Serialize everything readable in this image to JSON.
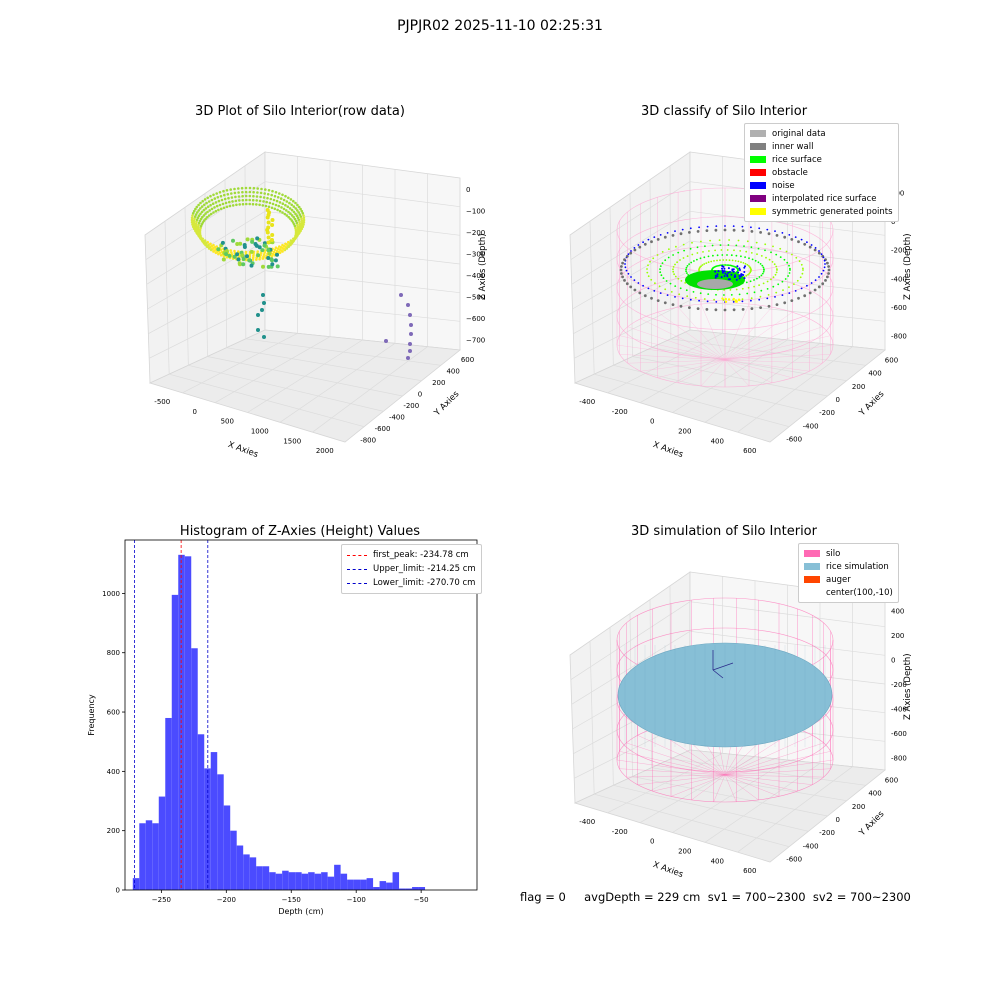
{
  "suptitle": "PJPJR02 2025-11-10 02:25:31",
  "footer": "flag = 0     avgDepth = 229 cm  sv1 = 700~2300  sv2 = 700~2300",
  "colors": {
    "hist_bar": "#4b4bff",
    "first_peak_line": "#ff0000",
    "limit_line": "#0000cc",
    "grid_pane": "#f2f2f2",
    "silo_mesh": "#ff69b4",
    "rice_sim": "#87bfd6",
    "auger": "#ff4500"
  },
  "chart_data": [
    {
      "id": "raw",
      "type": "scatter",
      "title": "3D Plot of Silo Interior(row data)",
      "xlabel": "X Axies",
      "ylabel": "Y Axies",
      "zlabel": "Z Axies (Depth)",
      "x_ticks": [
        "-500",
        "0",
        "500",
        "1000",
        "1500",
        "2000"
      ],
      "y_ticks": [
        "-800",
        "-600",
        "-400",
        "-200",
        "0",
        "200",
        "400",
        "600"
      ],
      "z_ticks": [
        "0",
        "−100",
        "−200",
        "−300",
        "−400",
        "−500",
        "−600",
        "−700"
      ],
      "colormap": "viridis"
    },
    {
      "id": "classify",
      "type": "scatter",
      "title": "3D classify of Silo Interior",
      "xlabel": "X Axies",
      "ylabel": "Y Axies",
      "zlabel": "Z Axies (Depth)",
      "x_ticks": [
        "-400",
        "-200",
        "0",
        "200",
        "400",
        "600"
      ],
      "y_ticks": [
        "-600",
        "-400",
        "-200",
        "0",
        "200",
        "400",
        "600"
      ],
      "z_ticks": [
        "200",
        "0",
        "-200",
        "-400",
        "-600",
        "-800"
      ],
      "legend": [
        {
          "label": "original data",
          "color": "#b0b0b0"
        },
        {
          "label": "inner wall",
          "color": "#808080"
        },
        {
          "label": "rice surface",
          "color": "#00ff00"
        },
        {
          "label": "obstacle",
          "color": "#ff0000"
        },
        {
          "label": "noise",
          "color": "#0000ff"
        },
        {
          "label": "interpolated rice surface",
          "color": "#800080"
        },
        {
          "label": "symmetric generated points",
          "color": "#ffff00"
        }
      ]
    },
    {
      "id": "hist",
      "type": "bar",
      "title": "Histogram of Z-Axies (Height) Values",
      "xlabel": "Depth (cm)",
      "ylabel": "Frequency",
      "xlim": [
        -278,
        -7
      ],
      "ylim": [
        0,
        1180
      ],
      "x_ticks": [
        -250,
        -200,
        -150,
        -100,
        -50
      ],
      "x_tick_labels": [
        "−250",
        "−200",
        "−150",
        "−100",
        "−50"
      ],
      "y_ticks": [
        0,
        200,
        400,
        600,
        800,
        1000
      ],
      "bin_start": -272,
      "bin_width": 5,
      "values": [
        40,
        225,
        235,
        225,
        315,
        580,
        995,
        1130,
        1125,
        815,
        525,
        410,
        465,
        390,
        285,
        200,
        150,
        120,
        110,
        80,
        80,
        60,
        55,
        65,
        60,
        60,
        55,
        60,
        55,
        60,
        45,
        85,
        55,
        35,
        35,
        35,
        40,
        10,
        30,
        25,
        60,
        5,
        5,
        10,
        10
      ],
      "vlines": [
        {
          "label": "first_peak: -234.78 cm",
          "x": -234.78,
          "color": "#ff0000"
        },
        {
          "label": "Upper_limit: -214.25 cm",
          "x": -214.25,
          "color": "#0000cc"
        },
        {
          "label": "Lower_limit: -270.70 cm",
          "x": -270.7,
          "color": "#0000cc"
        }
      ]
    },
    {
      "id": "sim",
      "type": "scatter",
      "title": "3D simulation of Silo Interior",
      "xlabel": "X Axies",
      "ylabel": "Y Axies",
      "zlabel": "Z Axies (Depth)",
      "x_ticks": [
        "-400",
        "-200",
        "0",
        "200",
        "400",
        "600"
      ],
      "y_ticks": [
        "-600",
        "-400",
        "-200",
        "0",
        "200",
        "400",
        "600"
      ],
      "z_ticks": [
        "400",
        "200",
        "0",
        "-200",
        "-400",
        "-600",
        "-800"
      ],
      "legend": [
        {
          "label": "silo",
          "color": "#ff69b4"
        },
        {
          "label": "rice simulation",
          "color": "#87bfd6"
        },
        {
          "label": "auger",
          "color": "#ff4500"
        },
        {
          "label": "center(100,-10)",
          "color": ""
        }
      ]
    }
  ]
}
